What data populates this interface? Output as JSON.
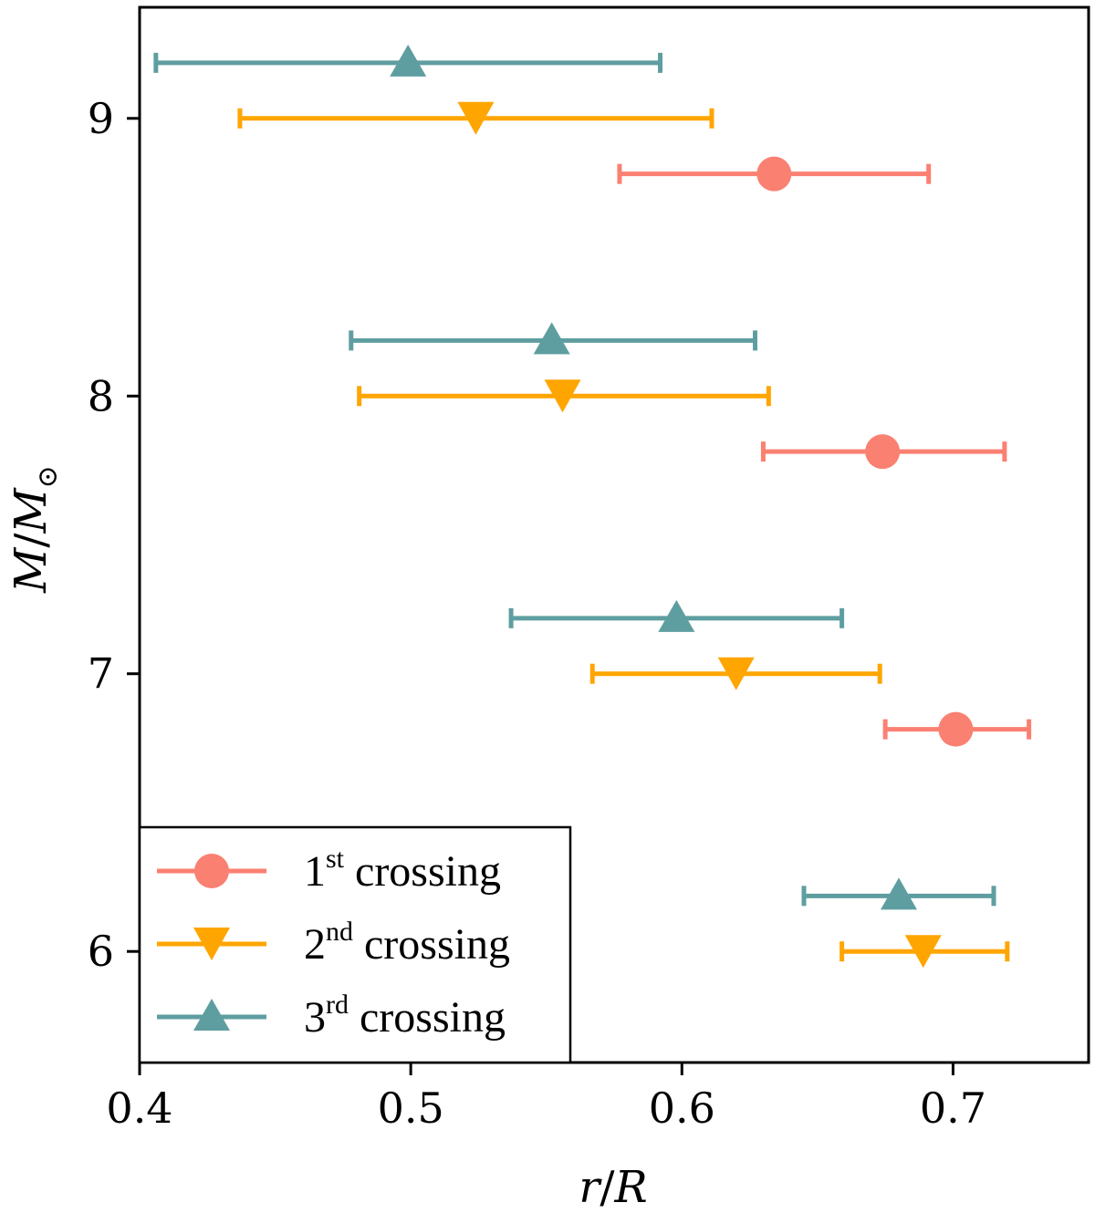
{
  "chart_data": {
    "type": "scatter",
    "title": "",
    "xlabel_parts": [
      "r",
      "/",
      "R"
    ],
    "ylabel_parts": [
      "M",
      "/",
      "M",
      "⊙"
    ],
    "xlim": [
      0.4,
      0.75
    ],
    "ylim": [
      5.6,
      9.4
    ],
    "xticks": [
      {
        "value": 0.4,
        "label": "0.4"
      },
      {
        "value": 0.5,
        "label": "0.5"
      },
      {
        "value": 0.6,
        "label": "0.6"
      },
      {
        "value": 0.7,
        "label": "0.7"
      }
    ],
    "yticks": [
      {
        "value": 6,
        "label": "6"
      },
      {
        "value": 7,
        "label": "7"
      },
      {
        "value": 8,
        "label": "8"
      },
      {
        "value": 9,
        "label": "9"
      }
    ],
    "legend_position": "lower-left",
    "series": [
      {
        "name": "1st crossing",
        "legend_number": "1",
        "legend_suffix": "st",
        "legend_word": "crossing",
        "marker": "circle",
        "color": "#FA8072",
        "points": [
          {
            "y": 6.8,
            "x": 0.701,
            "xmin": 0.675,
            "xmax": 0.728
          },
          {
            "y": 7.8,
            "x": 0.674,
            "xmin": 0.63,
            "xmax": 0.719
          },
          {
            "y": 8.8,
            "x": 0.634,
            "xmin": 0.577,
            "xmax": 0.691
          }
        ]
      },
      {
        "name": "2nd crossing",
        "legend_number": "2",
        "legend_suffix": "nd",
        "legend_word": "crossing",
        "marker": "triangle-down",
        "color": "#FFA500",
        "points": [
          {
            "y": 6.0,
            "x": 0.689,
            "xmin": 0.659,
            "xmax": 0.72
          },
          {
            "y": 7.0,
            "x": 0.62,
            "xmin": 0.567,
            "xmax": 0.673
          },
          {
            "y": 8.0,
            "x": 0.556,
            "xmin": 0.481,
            "xmax": 0.632
          },
          {
            "y": 9.0,
            "x": 0.524,
            "xmin": 0.437,
            "xmax": 0.611
          }
        ]
      },
      {
        "name": "3rd crossing",
        "legend_number": "3",
        "legend_suffix": "rd",
        "legend_word": "crossing",
        "marker": "triangle-up",
        "color": "#5F9EA0",
        "points": [
          {
            "y": 6.2,
            "x": 0.68,
            "xmin": 0.645,
            "xmax": 0.715
          },
          {
            "y": 7.2,
            "x": 0.598,
            "xmin": 0.537,
            "xmax": 0.659
          },
          {
            "y": 8.2,
            "x": 0.552,
            "xmin": 0.478,
            "xmax": 0.627
          },
          {
            "y": 9.2,
            "x": 0.499,
            "xmin": 0.406,
            "xmax": 0.592
          }
        ]
      }
    ]
  }
}
